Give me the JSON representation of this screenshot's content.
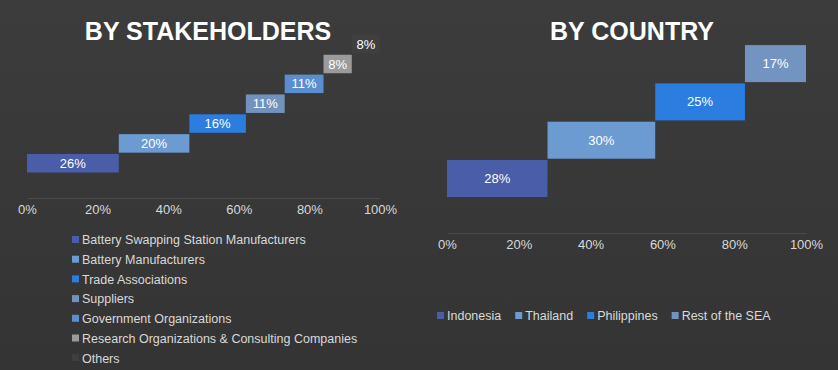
{
  "chart_data": [
    {
      "type": "bar",
      "title": "BY STAKEHOLDERS",
      "orientation": "horizontal",
      "stacked": true,
      "data_labels": true,
      "legend": "bottom",
      "categories": [
        null
      ],
      "xlim": [
        0,
        100
      ],
      "xticks": [
        {
          "value": 0,
          "label": "0%"
        },
        {
          "value": 20,
          "label": "20%"
        },
        {
          "value": 40,
          "label": "40%"
        },
        {
          "value": 60,
          "label": "60%"
        },
        {
          "value": 80,
          "label": "80%"
        },
        {
          "value": 100,
          "label": "100%"
        }
      ],
      "series": [
        {
          "name": "Battery Swapping Station Manufacturers",
          "color": "#4a5da8",
          "values": [
            26
          ],
          "value_labels": [
            "26%"
          ]
        },
        {
          "name": "Battery Manufacturers",
          "color": "#6c9bd2",
          "values": [
            20
          ],
          "value_labels": [
            "20%"
          ]
        },
        {
          "name": "Trade Associations",
          "color": "#2b7ddf",
          "values": [
            16
          ],
          "value_labels": [
            "16%"
          ]
        },
        {
          "name": "Suppliers",
          "color": "#7192bd",
          "values": [
            11
          ],
          "value_labels": [
            "11%"
          ]
        },
        {
          "name": "Government Organizations",
          "color": "#5a8ecf",
          "values": [
            11
          ],
          "value_labels": [
            "11%"
          ]
        },
        {
          "name": "Research Organizations & Consulting Companies",
          "color": "#9b9b9b",
          "values": [
            8
          ],
          "value_labels": [
            "8%"
          ]
        },
        {
          "name": "Others",
          "color": "#3f3f3f",
          "values": [
            8
          ],
          "value_labels": [
            "8%"
          ]
        }
      ]
    },
    {
      "type": "bar",
      "title": "BY COUNTRY",
      "orientation": "horizontal",
      "stacked": true,
      "data_labels": true,
      "legend": "bottom",
      "categories": [
        null
      ],
      "xlim": [
        0,
        100
      ],
      "xticks": [
        {
          "value": 0,
          "label": "0%"
        },
        {
          "value": 20,
          "label": "20%"
        },
        {
          "value": 40,
          "label": "40%"
        },
        {
          "value": 60,
          "label": "60%"
        },
        {
          "value": 80,
          "label": "80%"
        },
        {
          "value": 100,
          "label": "100%"
        }
      ],
      "series": [
        {
          "name": "Indonesia",
          "color": "#4a5da8",
          "values": [
            28
          ],
          "value_labels": [
            "28%"
          ]
        },
        {
          "name": "Thailand",
          "color": "#6c9bd2",
          "values": [
            30
          ],
          "value_labels": [
            "30%"
          ]
        },
        {
          "name": "Philippines",
          "color": "#2b7ddf",
          "values": [
            25
          ],
          "value_labels": [
            "25%"
          ]
        },
        {
          "name": "Rest of the SEA",
          "color": "#7394c0",
          "values": [
            17
          ],
          "value_labels": [
            "17%"
          ]
        }
      ]
    }
  ]
}
